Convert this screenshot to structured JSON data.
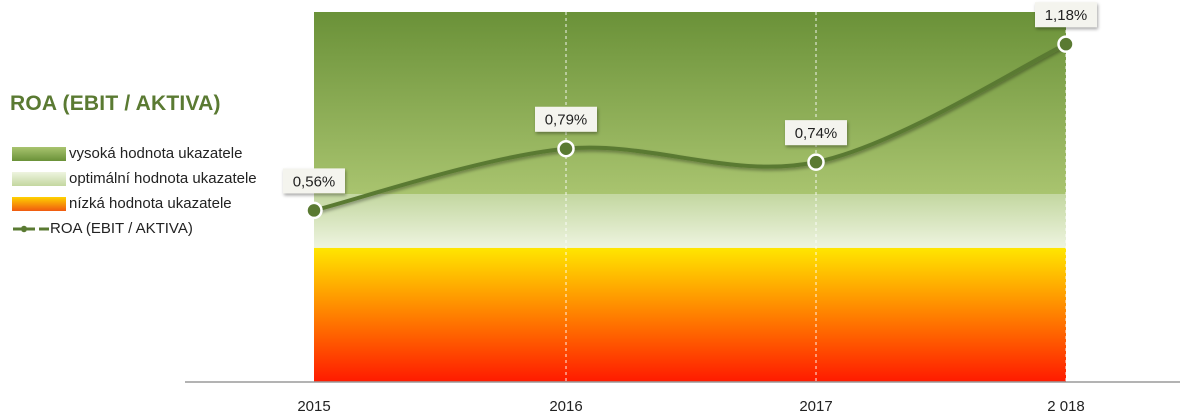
{
  "legend_title": "ROA (EBIT / AKTIVA)",
  "legend": [
    {
      "key": "high",
      "label": "vysoká hodnota ukazatele"
    },
    {
      "key": "optimal",
      "label": "optimální hodnota ukazatele"
    },
    {
      "key": "low",
      "label": "nízká hodnota ukazatele"
    },
    {
      "key": "series",
      "label": "ROA (EBIT / AKTIVA)"
    }
  ],
  "colors": {
    "line": "#5a7a32",
    "high_top": "#6a9138",
    "high_bottom": "#a9c46f",
    "optimal_top": "#c3d7a0",
    "optimal_bottom": "#eef4e0",
    "low_top": "#ffe600",
    "low_bottom": "#ff1a00"
  },
  "chart_data": {
    "type": "line",
    "categories": [
      "2015",
      "2016",
      "2017",
      "2 018"
    ],
    "series": [
      {
        "name": "ROA (EBIT / AKTIVA)",
        "values": [
          0.56,
          0.79,
          0.74,
          1.18
        ],
        "labels": [
          "0,56%",
          "0,79%",
          "0,74%",
          "1,18%"
        ]
      }
    ],
    "bands": [
      {
        "name": "vysoká hodnota ukazatele",
        "from": 0.62,
        "to": 1.3
      },
      {
        "name": "optimální hodnota ukazatele",
        "from": 0.42,
        "to": 0.62
      },
      {
        "name": "nízká hodnota ukazatele",
        "from": -0.08,
        "to": 0.42
      }
    ],
    "ylim": [
      -0.08,
      1.3
    ],
    "xlabel": "",
    "ylabel": "",
    "grid": false,
    "legend_position": "left"
  }
}
